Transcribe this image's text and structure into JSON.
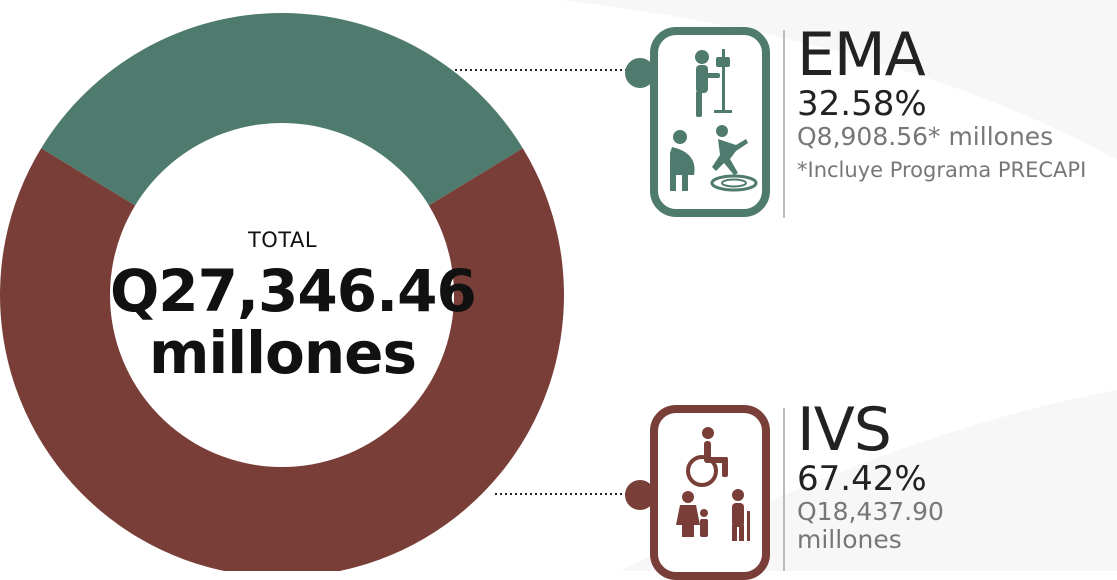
{
  "chart_data": {
    "type": "pie",
    "variant": "donut",
    "categories": [
      "EMA",
      "IVS"
    ],
    "values": [
      32.58,
      67.42
    ],
    "unit": "%",
    "colors": [
      "#4e7b6d",
      "#7a3e38"
    ],
    "center_label": "TOTAL",
    "center_value": "Q27,346.46",
    "center_unit": "millones",
    "legend": [
      {
        "name": "EMA",
        "percent_label": "32.58%",
        "amount_label": "Q8,908.56* millones",
        "note": "*Incluye Programa PRECAPI",
        "color": "#4e7b6d",
        "icons": [
          "iv-drip-patient-icon",
          "pregnant-woman-icon",
          "slip-fall-accident-icon"
        ]
      },
      {
        "name": "IVS",
        "percent_label": "67.42%",
        "amount_label": "Q18,437.90",
        "amount_unit": "millones",
        "color": "#7a3e38",
        "icons": [
          "wheelchair-icon",
          "family-icon",
          "elderly-person-icon"
        ]
      }
    ]
  }
}
